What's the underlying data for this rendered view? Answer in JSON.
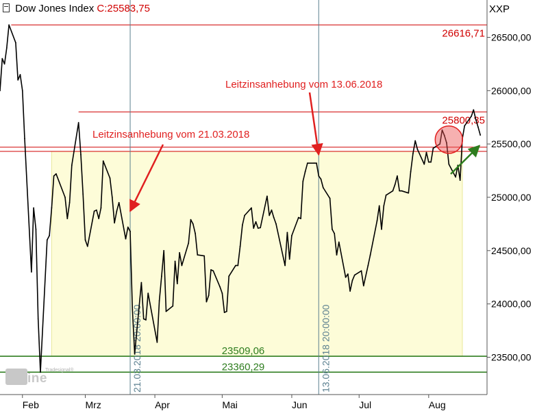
{
  "header": {
    "title": "Dow Jones Index",
    "close_label": "C:25583,75",
    "ticker": "XXP"
  },
  "watermark": {
    "line1": "Tradesignal®",
    "line2": "online"
  },
  "colors": {
    "price_line": "#000000",
    "resistance": "#d00000",
    "support": "#2e7d1f",
    "band_fill": "#fdfcd8",
    "band_stroke": "#e8e89a",
    "annotation_red": "#e02020",
    "annotation_green": "#2e7d1f",
    "vline": "#5a7f8f"
  },
  "chart_data": {
    "type": "line",
    "title": "Dow Jones Index",
    "ylim": [
      23150,
      26850
    ],
    "y_ticks": [
      {
        "value": 23500,
        "label": "23500,00"
      },
      {
        "value": 24000,
        "label": "24000,00"
      },
      {
        "value": 24500,
        "label": "24500,00"
      },
      {
        "value": 25000,
        "label": "25000,00"
      },
      {
        "value": 25500,
        "label": "25500,00"
      },
      {
        "value": 26000,
        "label": "26000,00"
      },
      {
        "value": 26500,
        "label": "26500,00"
      }
    ],
    "x_ticks": [
      {
        "date": "2018-02-01",
        "label": "Feb"
      },
      {
        "date": "2018-03-01",
        "label": "Mrz"
      },
      {
        "date": "2018-04-01",
        "label": "Apr"
      },
      {
        "date": "2018-05-01",
        "label": "Mai"
      },
      {
        "date": "2018-06-01",
        "label": "Jun"
      },
      {
        "date": "2018-07-01",
        "label": "Jul"
      },
      {
        "date": "2018-08-01",
        "label": "Aug"
      }
    ],
    "xlim": [
      "2018-01-22",
      "2018-08-27"
    ],
    "series": [
      {
        "points": [
          [
            "2018-01-22",
            26000
          ],
          [
            "2018-01-23",
            26300
          ],
          [
            "2018-01-24",
            26250
          ],
          [
            "2018-01-25",
            26400
          ],
          [
            "2018-01-26",
            26616
          ],
          [
            "2018-01-29",
            26450
          ],
          [
            "2018-01-30",
            26100
          ],
          [
            "2018-01-31",
            26150
          ],
          [
            "2018-02-01",
            26000
          ],
          [
            "2018-02-02",
            25550
          ],
          [
            "2018-02-05",
            24300
          ],
          [
            "2018-02-06",
            24900
          ],
          [
            "2018-02-07",
            24700
          ],
          [
            "2018-02-08",
            23860
          ],
          [
            "2018-02-09",
            23360
          ],
          [
            "2018-02-12",
            24600
          ],
          [
            "2018-02-13",
            24640
          ],
          [
            "2018-02-14",
            24900
          ],
          [
            "2018-02-15",
            25200
          ],
          [
            "2018-02-16",
            25220
          ],
          [
            "2018-02-20",
            25000
          ],
          [
            "2018-02-21",
            24800
          ],
          [
            "2018-02-22",
            24950
          ],
          [
            "2018-02-23",
            25300
          ],
          [
            "2018-02-26",
            25700
          ],
          [
            "2018-02-27",
            25400
          ],
          [
            "2018-02-28",
            25030
          ],
          [
            "2018-03-01",
            24600
          ],
          [
            "2018-03-02",
            24540
          ],
          [
            "2018-03-05",
            24870
          ],
          [
            "2018-03-06",
            24880
          ],
          [
            "2018-03-07",
            24800
          ],
          [
            "2018-03-08",
            24900
          ],
          [
            "2018-03-09",
            25340
          ],
          [
            "2018-03-12",
            25180
          ],
          [
            "2018-03-13",
            25000
          ],
          [
            "2018-03-14",
            24760
          ],
          [
            "2018-03-15",
            24870
          ],
          [
            "2018-03-16",
            24950
          ],
          [
            "2018-03-19",
            24610
          ],
          [
            "2018-03-20",
            24720
          ],
          [
            "2018-03-21",
            24680
          ],
          [
            "2018-03-22",
            23950
          ],
          [
            "2018-03-23",
            23530
          ],
          [
            "2018-03-26",
            24200
          ],
          [
            "2018-03-27",
            23860
          ],
          [
            "2018-03-28",
            23850
          ],
          [
            "2018-03-29",
            24100
          ],
          [
            "2018-04-02",
            23640
          ],
          [
            "2018-04-03",
            24030
          ],
          [
            "2018-04-04",
            24260
          ],
          [
            "2018-04-05",
            24500
          ],
          [
            "2018-04-06",
            23930
          ],
          [
            "2018-04-09",
            23980
          ],
          [
            "2018-04-10",
            24400
          ],
          [
            "2018-04-11",
            24190
          ],
          [
            "2018-04-12",
            24480
          ],
          [
            "2018-04-13",
            24360
          ],
          [
            "2018-04-16",
            24570
          ],
          [
            "2018-04-17",
            24790
          ],
          [
            "2018-04-18",
            24750
          ],
          [
            "2018-04-19",
            24660
          ],
          [
            "2018-04-20",
            24460
          ],
          [
            "2018-04-23",
            24450
          ],
          [
            "2018-04-24",
            24020
          ],
          [
            "2018-04-25",
            24080
          ],
          [
            "2018-04-26",
            24320
          ],
          [
            "2018-04-27",
            24310
          ],
          [
            "2018-04-30",
            24160
          ],
          [
            "2018-05-01",
            24100
          ],
          [
            "2018-05-02",
            23920
          ],
          [
            "2018-05-03",
            23930
          ],
          [
            "2018-05-04",
            24260
          ],
          [
            "2018-05-07",
            24360
          ],
          [
            "2018-05-08",
            24360
          ],
          [
            "2018-05-09",
            24540
          ],
          [
            "2018-05-10",
            24740
          ],
          [
            "2018-05-11",
            24830
          ],
          [
            "2018-05-14",
            24900
          ],
          [
            "2018-05-15",
            24710
          ],
          [
            "2018-05-16",
            24770
          ],
          [
            "2018-05-17",
            24710
          ],
          [
            "2018-05-18",
            24715
          ],
          [
            "2018-05-21",
            25010
          ],
          [
            "2018-05-22",
            24830
          ],
          [
            "2018-05-23",
            24880
          ],
          [
            "2018-05-24",
            24810
          ],
          [
            "2018-05-25",
            24750
          ],
          [
            "2018-05-29",
            24360
          ],
          [
            "2018-05-30",
            24670
          ],
          [
            "2018-05-31",
            24420
          ],
          [
            "2018-06-01",
            24640
          ],
          [
            "2018-06-04",
            24810
          ],
          [
            "2018-06-05",
            24800
          ],
          [
            "2018-06-06",
            25150
          ],
          [
            "2018-06-07",
            25240
          ],
          [
            "2018-06-08",
            25320
          ],
          [
            "2018-06-11",
            25320
          ],
          [
            "2018-06-12",
            25320
          ],
          [
            "2018-06-13",
            25200
          ],
          [
            "2018-06-14",
            25170
          ],
          [
            "2018-06-15",
            25090
          ],
          [
            "2018-06-18",
            24990
          ],
          [
            "2018-06-19",
            24700
          ],
          [
            "2018-06-20",
            24660
          ],
          [
            "2018-06-21",
            24460
          ],
          [
            "2018-06-22",
            24580
          ],
          [
            "2018-06-25",
            24250
          ],
          [
            "2018-06-26",
            24280
          ],
          [
            "2018-06-27",
            24120
          ],
          [
            "2018-06-28",
            24220
          ],
          [
            "2018-06-29",
            24270
          ],
          [
            "2018-07-02",
            24310
          ],
          [
            "2018-07-03",
            24170
          ],
          [
            "2018-07-05",
            24360
          ],
          [
            "2018-07-06",
            24460
          ],
          [
            "2018-07-09",
            24780
          ],
          [
            "2018-07-10",
            24920
          ],
          [
            "2018-07-11",
            24700
          ],
          [
            "2018-07-12",
            24920
          ],
          [
            "2018-07-13",
            25020
          ],
          [
            "2018-07-16",
            25060
          ],
          [
            "2018-07-17",
            25120
          ],
          [
            "2018-07-18",
            25200
          ],
          [
            "2018-07-19",
            25060
          ],
          [
            "2018-07-20",
            25060
          ],
          [
            "2018-07-23",
            25040
          ],
          [
            "2018-07-24",
            25240
          ],
          [
            "2018-07-25",
            25410
          ],
          [
            "2018-07-26",
            25530
          ],
          [
            "2018-07-27",
            25450
          ],
          [
            "2018-07-30",
            25310
          ],
          [
            "2018-07-31",
            25420
          ],
          [
            "2018-08-01",
            25330
          ],
          [
            "2018-08-02",
            25330
          ],
          [
            "2018-08-03",
            25460
          ],
          [
            "2018-08-06",
            25500
          ],
          [
            "2018-08-07",
            25630
          ],
          [
            "2018-08-08",
            25580
          ],
          [
            "2018-08-09",
            25510
          ],
          [
            "2018-08-10",
            25310
          ],
          [
            "2018-08-13",
            25190
          ],
          [
            "2018-08-14",
            25300
          ],
          [
            "2018-08-15",
            25160
          ],
          [
            "2018-08-16",
            25550
          ],
          [
            "2018-08-17",
            25670
          ],
          [
            "2018-08-20",
            25760
          ],
          [
            "2018-08-21",
            25820
          ],
          [
            "2018-08-22",
            25730
          ],
          [
            "2018-08-23",
            25660
          ],
          [
            "2018-08-24",
            25583
          ]
        ]
      }
    ],
    "horizontal_lines": [
      {
        "value": 26616.71,
        "label": "26616,71",
        "color": "#d00000",
        "start": "2018-01-27"
      },
      {
        "value": 25800.35,
        "label": "25800,35",
        "color": "#d00000",
        "start": "2018-02-26"
      },
      {
        "value": 25470,
        "label": "",
        "color": "#d00000",
        "start": "2018-01-22"
      },
      {
        "value": 25430,
        "label": "",
        "color": "#d00000",
        "start": "2018-01-22"
      },
      {
        "value": 23509.06,
        "label": "23509,06",
        "color": "#2e7d1f",
        "start": "2018-01-22"
      },
      {
        "value": 23360.29,
        "label": "23360,29",
        "color": "#2e7d1f",
        "start": "2018-01-22"
      }
    ],
    "band": {
      "x_start": "2018-02-14",
      "x_end": "2018-08-16",
      "y_low": 23509.06,
      "y_high": 25430
    },
    "vertical_lines": [
      {
        "date": "2018-03-21",
        "label": "21.03.2018 20:00:00"
      },
      {
        "date": "2018-06-13",
        "label": "13.06.2018 20:00:00"
      }
    ],
    "annotations": [
      {
        "text": "Leitzinsanhebung vom 21.03.2018",
        "target_date": "2018-03-21",
        "target_value": 24870
      },
      {
        "text": "Leitzinsanhebung vom 13.06.2018",
        "target_date": "2018-06-13",
        "target_value": 25400
      }
    ],
    "highlight_circle": {
      "date": "2018-08-10",
      "value": 25540
    },
    "green_arrow": {
      "date": "2018-08-23",
      "value": 25510
    }
  }
}
